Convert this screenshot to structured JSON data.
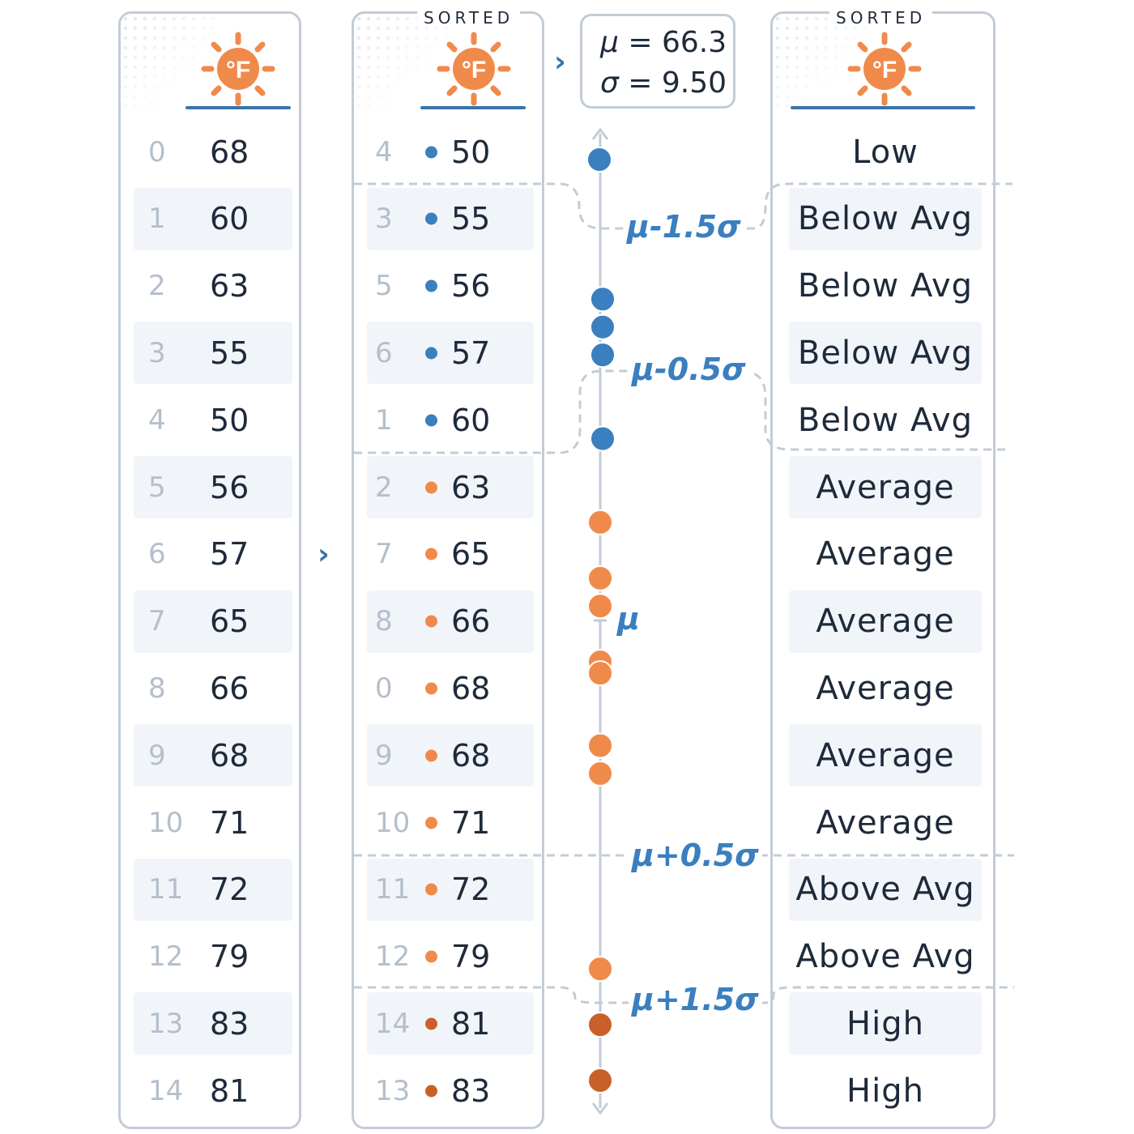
{
  "units_icon": "°F",
  "sorted_label": "SORTED",
  "stats": {
    "mu_symbol": "μ",
    "mu_value": "66.3",
    "sigma_symbol": "σ",
    "sigma_value": "9.50"
  },
  "original": [
    {
      "index": "0",
      "value": "68"
    },
    {
      "index": "1",
      "value": "60"
    },
    {
      "index": "2",
      "value": "63"
    },
    {
      "index": "3",
      "value": "55"
    },
    {
      "index": "4",
      "value": "50"
    },
    {
      "index": "5",
      "value": "56"
    },
    {
      "index": "6",
      "value": "57"
    },
    {
      "index": "7",
      "value": "65"
    },
    {
      "index": "8",
      "value": "66"
    },
    {
      "index": "9",
      "value": "68"
    },
    {
      "index": "10",
      "value": "71"
    },
    {
      "index": "11",
      "value": "72"
    },
    {
      "index": "12",
      "value": "79"
    },
    {
      "index": "13",
      "value": "83"
    },
    {
      "index": "14",
      "value": "81"
    }
  ],
  "sorted": [
    {
      "index": "4",
      "value": "50",
      "group": "below"
    },
    {
      "index": "3",
      "value": "55",
      "group": "below"
    },
    {
      "index": "5",
      "value": "56",
      "group": "below"
    },
    {
      "index": "6",
      "value": "57",
      "group": "below"
    },
    {
      "index": "1",
      "value": "60",
      "group": "below"
    },
    {
      "index": "2",
      "value": "63",
      "group": "above"
    },
    {
      "index": "7",
      "value": "65",
      "group": "above"
    },
    {
      "index": "8",
      "value": "66",
      "group": "above"
    },
    {
      "index": "0",
      "value": "68",
      "group": "above"
    },
    {
      "index": "9",
      "value": "68",
      "group": "above"
    },
    {
      "index": "10",
      "value": "71",
      "group": "above"
    },
    {
      "index": "11",
      "value": "72",
      "group": "above"
    },
    {
      "index": "12",
      "value": "79",
      "group": "above"
    },
    {
      "index": "14",
      "value": "81",
      "group": "high"
    },
    {
      "index": "13",
      "value": "83",
      "group": "high"
    }
  ],
  "categories": [
    "Low",
    "Below Avg",
    "Below Avg",
    "Below Avg",
    "Below Avg",
    "Average",
    "Average",
    "Average",
    "Average",
    "Average",
    "Average",
    "Above Avg",
    "Above Avg",
    "High",
    "High"
  ],
  "thresholds": [
    "μ-1.5σ",
    "μ-0.5σ",
    "μ",
    "μ+0.5σ",
    "μ+1.5σ"
  ],
  "colors": {
    "blue": "#3a7fc0",
    "orange": "#f08a4b",
    "dark_orange": "#c9602a",
    "line": "#3a74a8"
  }
}
